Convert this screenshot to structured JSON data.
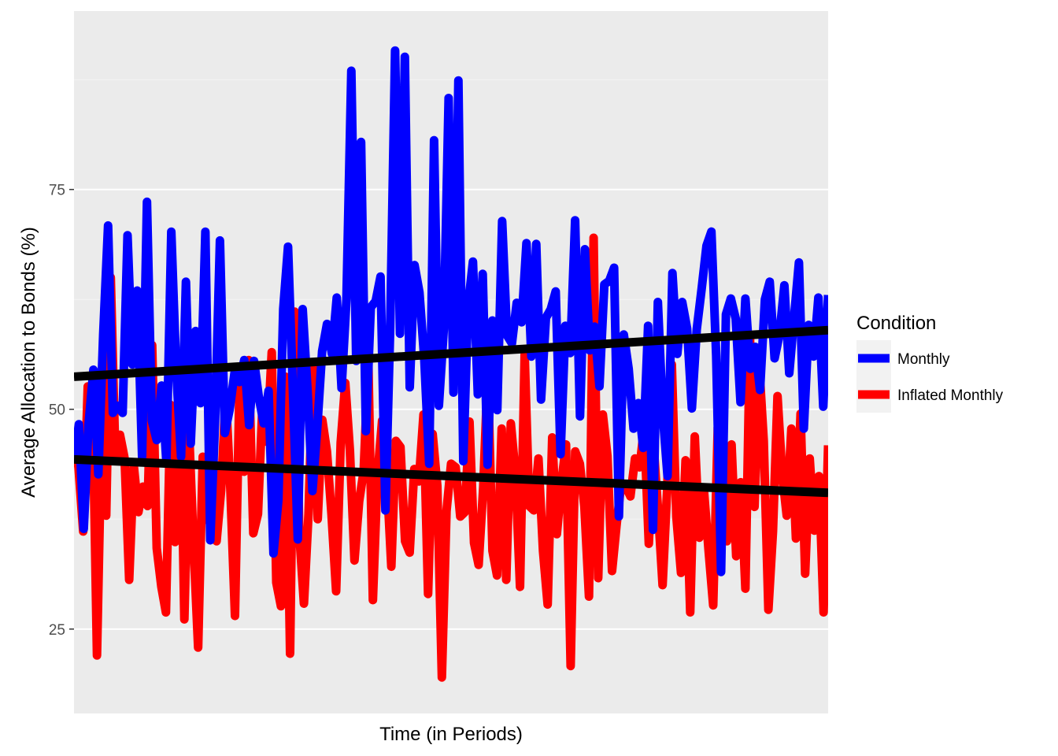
{
  "chart_data": {
    "type": "line",
    "title": "",
    "xlabel": "Time (in Periods)",
    "ylabel": "Average Allocation to Bonds (%)",
    "x_range": [
      1,
      240
    ],
    "ylim": [
      15.4,
      95.3
    ],
    "y_ticks": [
      25,
      50,
      75
    ],
    "y_tick_labels": [
      "25",
      "50",
      "75"
    ],
    "x_ticks_shown": false,
    "grid": true,
    "legend": {
      "title": "Condition",
      "position": "right"
    },
    "series": [
      {
        "name": "Monthly",
        "color": "#0000FF",
        "values": [
          43.9,
          48.3,
          36.4,
          48.3,
          54.5,
          42.6,
          58.5,
          70.9,
          49.6,
          50.4,
          49.6,
          69.8,
          55.1,
          63.5,
          44.6,
          73.6,
          48.7,
          46.5,
          52.7,
          44.0,
          70.2,
          54.5,
          44.6,
          64.5,
          46.1,
          58.9,
          50.7,
          70.2,
          35.1,
          48.6,
          69.2,
          47.3,
          50.0,
          54.2,
          53.1,
          55.6,
          48.2,
          55.5,
          51.3,
          48.4,
          52.1,
          33.6,
          39.7,
          61.4,
          68.5,
          52.1,
          35.2,
          61.4,
          52.1,
          40.7,
          47.9,
          56.6,
          59.7,
          56.3,
          62.7,
          52.4,
          62.5,
          88.5,
          55.5,
          80.4,
          47.5,
          61.6,
          62.3,
          65.1,
          38.5,
          59.4,
          90.8,
          58.6,
          90.1,
          52.5,
          66.4,
          63.3,
          55.7,
          43.8,
          80.6,
          50.4,
          59.1,
          85.4,
          51.9,
          87.4,
          44.1,
          61.8,
          66.8,
          51.7,
          65.4,
          43.7,
          60.1,
          49.9,
          71.4,
          58.4,
          57.5,
          62.1,
          59.9,
          68.9,
          56.0,
          68.8,
          51.1,
          60.4,
          61.4,
          63.4,
          44.9,
          59.5,
          56.4,
          71.5,
          49.2,
          68.2,
          56.7,
          59.4,
          52.6,
          64.2,
          64.6,
          66.1,
          37.8,
          58.5,
          54.6,
          47.8,
          50.7,
          45.6,
          59.5,
          36.3,
          62.2,
          49.5,
          42.4,
          65.5,
          56.3,
          62.2,
          59.2,
          50.1,
          59.1,
          63.7,
          68.6,
          70.2,
          56.1,
          31.5,
          60.8,
          62.6,
          60.3,
          50.8,
          62.6,
          54.6,
          57.1,
          52.2,
          62.5,
          64.5,
          55.8,
          58.5,
          64.1,
          54.1,
          60.4,
          66.7,
          47.8,
          59.6,
          56.0,
          62.7,
          50.3,
          63.0
        ]
      },
      {
        "name": "Inflated Monthly",
        "color": "#FF0000",
        "values": [
          47.5,
          43.3,
          36.1,
          52.6,
          51.6,
          22.0,
          47.5,
          37.9,
          65.0,
          44.3,
          47.1,
          44.4,
          30.6,
          43.6,
          38.3,
          41.2,
          39.0,
          57.3,
          34.2,
          29.8,
          26.9,
          50.5,
          34.9,
          55.2,
          26.1,
          48.0,
          34.5,
          22.9,
          44.6,
          37.4,
          49.1,
          35.0,
          40.8,
          51.8,
          41.0,
          26.5,
          53.1,
          42.9,
          55.6,
          35.9,
          38.1,
          50.7,
          46.3,
          56.5,
          30.3,
          27.6,
          53.7,
          22.2,
          61.1,
          35.9,
          27.9,
          38.1,
          55.2,
          37.5,
          48.8,
          45.2,
          38.1,
          29.3,
          46.2,
          53.0,
          45.3,
          32.8,
          39.5,
          43.0,
          55.5,
          28.3,
          42.5,
          48.7,
          42.5,
          32.1,
          46.4,
          45.7,
          35.0,
          33.7,
          43.2,
          41.8,
          49.4,
          29.0,
          47.2,
          41.3,
          19.5,
          38.4,
          43.8,
          43.4,
          37.8,
          38.3,
          48.6,
          34.8,
          32.3,
          41.2,
          54.4,
          33.9,
          31.1,
          47.8,
          30.6,
          48.4,
          42.7,
          29.8,
          56.2,
          39.0,
          38.5,
          44.4,
          33.9,
          27.8,
          46.8,
          35.8,
          41.7,
          46.0,
          20.8,
          45.2,
          43.8,
          38.9,
          28.7,
          69.5,
          30.8,
          49.4,
          44.7,
          31.6,
          36.9,
          41.5,
          41.2,
          40.1,
          44.4,
          43.4,
          48.0,
          34.7,
          46.3,
          38.6,
          30.0,
          40.9,
          55.1,
          37.8,
          31.4,
          44.2,
          26.9,
          46.9,
          35.4,
          40.7,
          34.0,
          27.7,
          47.9,
          44.7,
          35.0,
          46.0,
          33.3,
          41.7,
          29.6,
          58.2,
          38.9,
          55.1,
          46.4,
          27.2,
          36.1,
          51.5,
          42.7,
          37.9,
          47.8,
          35.3,
          49.5,
          31.3,
          44.4,
          36.2,
          42.4,
          26.9,
          45.9
        ]
      }
    ],
    "trend_lines": [
      {
        "series": "Monthly",
        "color": "#000000",
        "start": 53.7,
        "end": 59.0
      },
      {
        "series": "Inflated Monthly",
        "color": "#000000",
        "start": 44.3,
        "end": 40.5
      }
    ]
  }
}
